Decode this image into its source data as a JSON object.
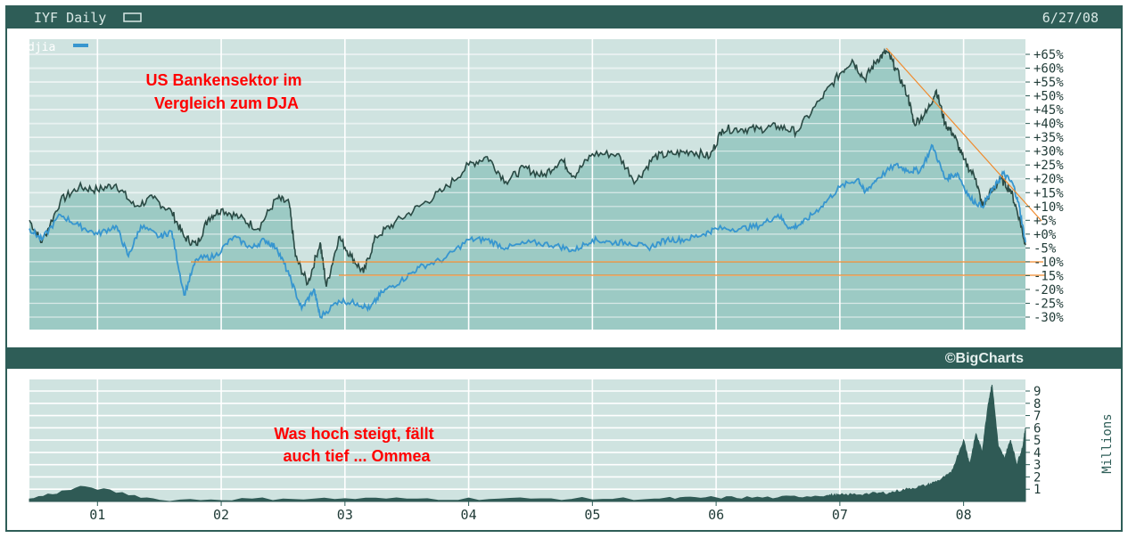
{
  "header": {
    "ticker_label": "IYF Daily",
    "date_label": "6/27/08"
  },
  "legend": {
    "series_name": "djia"
  },
  "annotations": {
    "top_line1": "US Bankensektor im",
    "top_line2": "Vergleich zum DJA",
    "bottom_line1": "Was hoch steigt, fällt",
    "bottom_line2": "auch tief ... Ommea"
  },
  "watermark": "©BigCharts",
  "volume_unit_label": "Millions",
  "colors": {
    "frame": "#2e5d57",
    "plot_bg": "#a9d1cc",
    "plot_bg_light": "#cfe3e0",
    "iyf_line": "#2a4a44",
    "iyf_fill": "#9ccac4",
    "djia_line": "#3796cf",
    "annotation_red": "#ff0000",
    "trend_orange": "#f08a2c"
  },
  "chart_data": [
    {
      "type": "line",
      "title": "IYF Daily",
      "x_tick_labels": [
        "01",
        "02",
        "03",
        "04",
        "05",
        "06",
        "07",
        "08"
      ],
      "x_range": [
        2000.45,
        2008.5
      ],
      "y_unit": "percent change",
      "y_tick_labels": [
        "+65%",
        "+60%",
        "+55%",
        "+50%",
        "+45%",
        "+40%",
        "+35%",
        "+30%",
        "+25%",
        "+20%",
        "+15%",
        "+10%",
        "+5%",
        "+0%",
        "-5%",
        "-10%",
        "-15%",
        "-20%",
        "-25%",
        "-30%"
      ],
      "ylim": [
        -33,
        70
      ],
      "grid": true,
      "legend_position": "top-left",
      "series": [
        {
          "name": "",
          "style": "area",
          "points": [
            [
              2000.45,
              5
            ],
            [
              2000.55,
              -3
            ],
            [
              2000.7,
              12
            ],
            [
              2000.85,
              17
            ],
            [
              2001.0,
              16
            ],
            [
              2001.15,
              18
            ],
            [
              2001.3,
              10
            ],
            [
              2001.45,
              13
            ],
            [
              2001.6,
              8
            ],
            [
              2001.7,
              -1
            ],
            [
              2001.8,
              -4
            ],
            [
              2001.9,
              6
            ],
            [
              2002.0,
              9
            ],
            [
              2002.15,
              6
            ],
            [
              2002.3,
              2
            ],
            [
              2002.45,
              13
            ],
            [
              2002.55,
              11
            ],
            [
              2002.6,
              -8
            ],
            [
              2002.7,
              -18
            ],
            [
              2002.8,
              -3
            ],
            [
              2002.85,
              -19
            ],
            [
              2002.95,
              -1
            ],
            [
              2003.05,
              -8
            ],
            [
              2003.15,
              -14
            ],
            [
              2003.25,
              -1
            ],
            [
              2003.4,
              4
            ],
            [
              2003.6,
              10
            ],
            [
              2003.8,
              16
            ],
            [
              2004.0,
              25
            ],
            [
              2004.15,
              28
            ],
            [
              2004.3,
              19
            ],
            [
              2004.45,
              24
            ],
            [
              2004.6,
              21
            ],
            [
              2004.75,
              27
            ],
            [
              2004.85,
              21
            ],
            [
              2005.0,
              29
            ],
            [
              2005.2,
              29
            ],
            [
              2005.35,
              19
            ],
            [
              2005.5,
              28
            ],
            [
              2005.65,
              29
            ],
            [
              2005.8,
              30
            ],
            [
              2005.95,
              28
            ],
            [
              2006.05,
              38
            ],
            [
              2006.2,
              38
            ],
            [
              2006.35,
              38
            ],
            [
              2006.5,
              39
            ],
            [
              2006.65,
              37
            ],
            [
              2006.85,
              49
            ],
            [
              2007.0,
              58
            ],
            [
              2007.1,
              63
            ],
            [
              2007.2,
              56
            ],
            [
              2007.3,
              63
            ],
            [
              2007.38,
              66
            ],
            [
              2007.45,
              60
            ],
            [
              2007.55,
              50
            ],
            [
              2007.6,
              40
            ],
            [
              2007.7,
              44
            ],
            [
              2007.78,
              52
            ],
            [
              2007.85,
              40
            ],
            [
              2007.92,
              36
            ],
            [
              2008.0,
              27
            ],
            [
              2008.1,
              20
            ],
            [
              2008.15,
              10
            ],
            [
              2008.22,
              15
            ],
            [
              2008.3,
              20
            ],
            [
              2008.38,
              16
            ],
            [
              2008.45,
              6
            ],
            [
              2008.5,
              -4
            ]
          ]
        },
        {
          "name": "djia",
          "style": "line",
          "points": [
            [
              2000.45,
              2
            ],
            [
              2000.55,
              -2
            ],
            [
              2000.7,
              7
            ],
            [
              2000.85,
              3
            ],
            [
              2001.0,
              0
            ],
            [
              2001.15,
              3
            ],
            [
              2001.25,
              -8
            ],
            [
              2001.35,
              3
            ],
            [
              2001.5,
              -1
            ],
            [
              2001.6,
              1
            ],
            [
              2001.7,
              -22
            ],
            [
              2001.8,
              -9
            ],
            [
              2001.95,
              -8
            ],
            [
              2002.1,
              -1
            ],
            [
              2002.25,
              -5
            ],
            [
              2002.35,
              -2
            ],
            [
              2002.45,
              -5
            ],
            [
              2002.55,
              -15
            ],
            [
              2002.65,
              -27
            ],
            [
              2002.75,
              -20
            ],
            [
              2002.8,
              -30
            ],
            [
              2002.95,
              -24
            ],
            [
              2003.1,
              -25
            ],
            [
              2003.2,
              -27
            ],
            [
              2003.3,
              -21
            ],
            [
              2003.45,
              -17
            ],
            [
              2003.6,
              -12
            ],
            [
              2003.8,
              -9
            ],
            [
              2004.0,
              -2
            ],
            [
              2004.15,
              -2
            ],
            [
              2004.3,
              -5
            ],
            [
              2004.5,
              -3
            ],
            [
              2004.7,
              -4
            ],
            [
              2004.85,
              -6
            ],
            [
              2005.0,
              -2
            ],
            [
              2005.15,
              -3
            ],
            [
              2005.3,
              -3
            ],
            [
              2005.45,
              -5
            ],
            [
              2005.6,
              -2
            ],
            [
              2005.75,
              -2
            ],
            [
              2005.9,
              0
            ],
            [
              2006.0,
              2
            ],
            [
              2006.2,
              2
            ],
            [
              2006.35,
              3
            ],
            [
              2006.5,
              7
            ],
            [
              2006.6,
              2
            ],
            [
              2006.7,
              4
            ],
            [
              2006.85,
              10
            ],
            [
              2007.0,
              17
            ],
            [
              2007.15,
              20
            ],
            [
              2007.2,
              15
            ],
            [
              2007.3,
              20
            ],
            [
              2007.45,
              25
            ],
            [
              2007.55,
              23
            ],
            [
              2007.65,
              23
            ],
            [
              2007.75,
              32
            ],
            [
              2007.85,
              20
            ],
            [
              2007.95,
              22
            ],
            [
              2008.05,
              13
            ],
            [
              2008.15,
              10
            ],
            [
              2008.25,
              17
            ],
            [
              2008.32,
              22
            ],
            [
              2008.4,
              18
            ],
            [
              2008.45,
              10
            ],
            [
              2008.5,
              -3
            ]
          ]
        }
      ]
    },
    {
      "type": "bar",
      "title": "",
      "y_label": "Millions",
      "y_tick_labels": [
        "9",
        "8",
        "7",
        "6",
        "5",
        "4",
        "3",
        "2",
        "1"
      ],
      "ylim": [
        0,
        10
      ],
      "x_tick_labels": [
        "01",
        "02",
        "03",
        "04",
        "05",
        "06",
        "07",
        "08"
      ],
      "x_range": [
        2000.45,
        2008.5
      ],
      "grid": true,
      "points": [
        [
          2000.45,
          0.2
        ],
        [
          2000.9,
          1.2
        ],
        [
          2001.5,
          0.1
        ],
        [
          2002.5,
          0.2
        ],
        [
          2003.5,
          0.2
        ],
        [
          2004.5,
          0.2
        ],
        [
          2005.5,
          0.2
        ],
        [
          2006.0,
          0.3
        ],
        [
          2006.5,
          0.3
        ],
        [
          2006.9,
          0.5
        ],
        [
          2007.0,
          0.5
        ],
        [
          2007.2,
          0.6
        ],
        [
          2007.4,
          0.7
        ],
        [
          2007.55,
          1.0
        ],
        [
          2007.7,
          1.3
        ],
        [
          2007.8,
          1.7
        ],
        [
          2007.9,
          2.3
        ],
        [
          2008.0,
          5.0
        ],
        [
          2008.05,
          3.0
        ],
        [
          2008.1,
          5.5
        ],
        [
          2008.15,
          4.0
        ],
        [
          2008.2,
          8.0
        ],
        [
          2008.23,
          9.5
        ],
        [
          2008.28,
          4.5
        ],
        [
          2008.33,
          3.5
        ],
        [
          2008.38,
          5.0
        ],
        [
          2008.43,
          3.0
        ],
        [
          2008.48,
          4.5
        ],
        [
          2008.5,
          6.0
        ]
      ]
    }
  ]
}
